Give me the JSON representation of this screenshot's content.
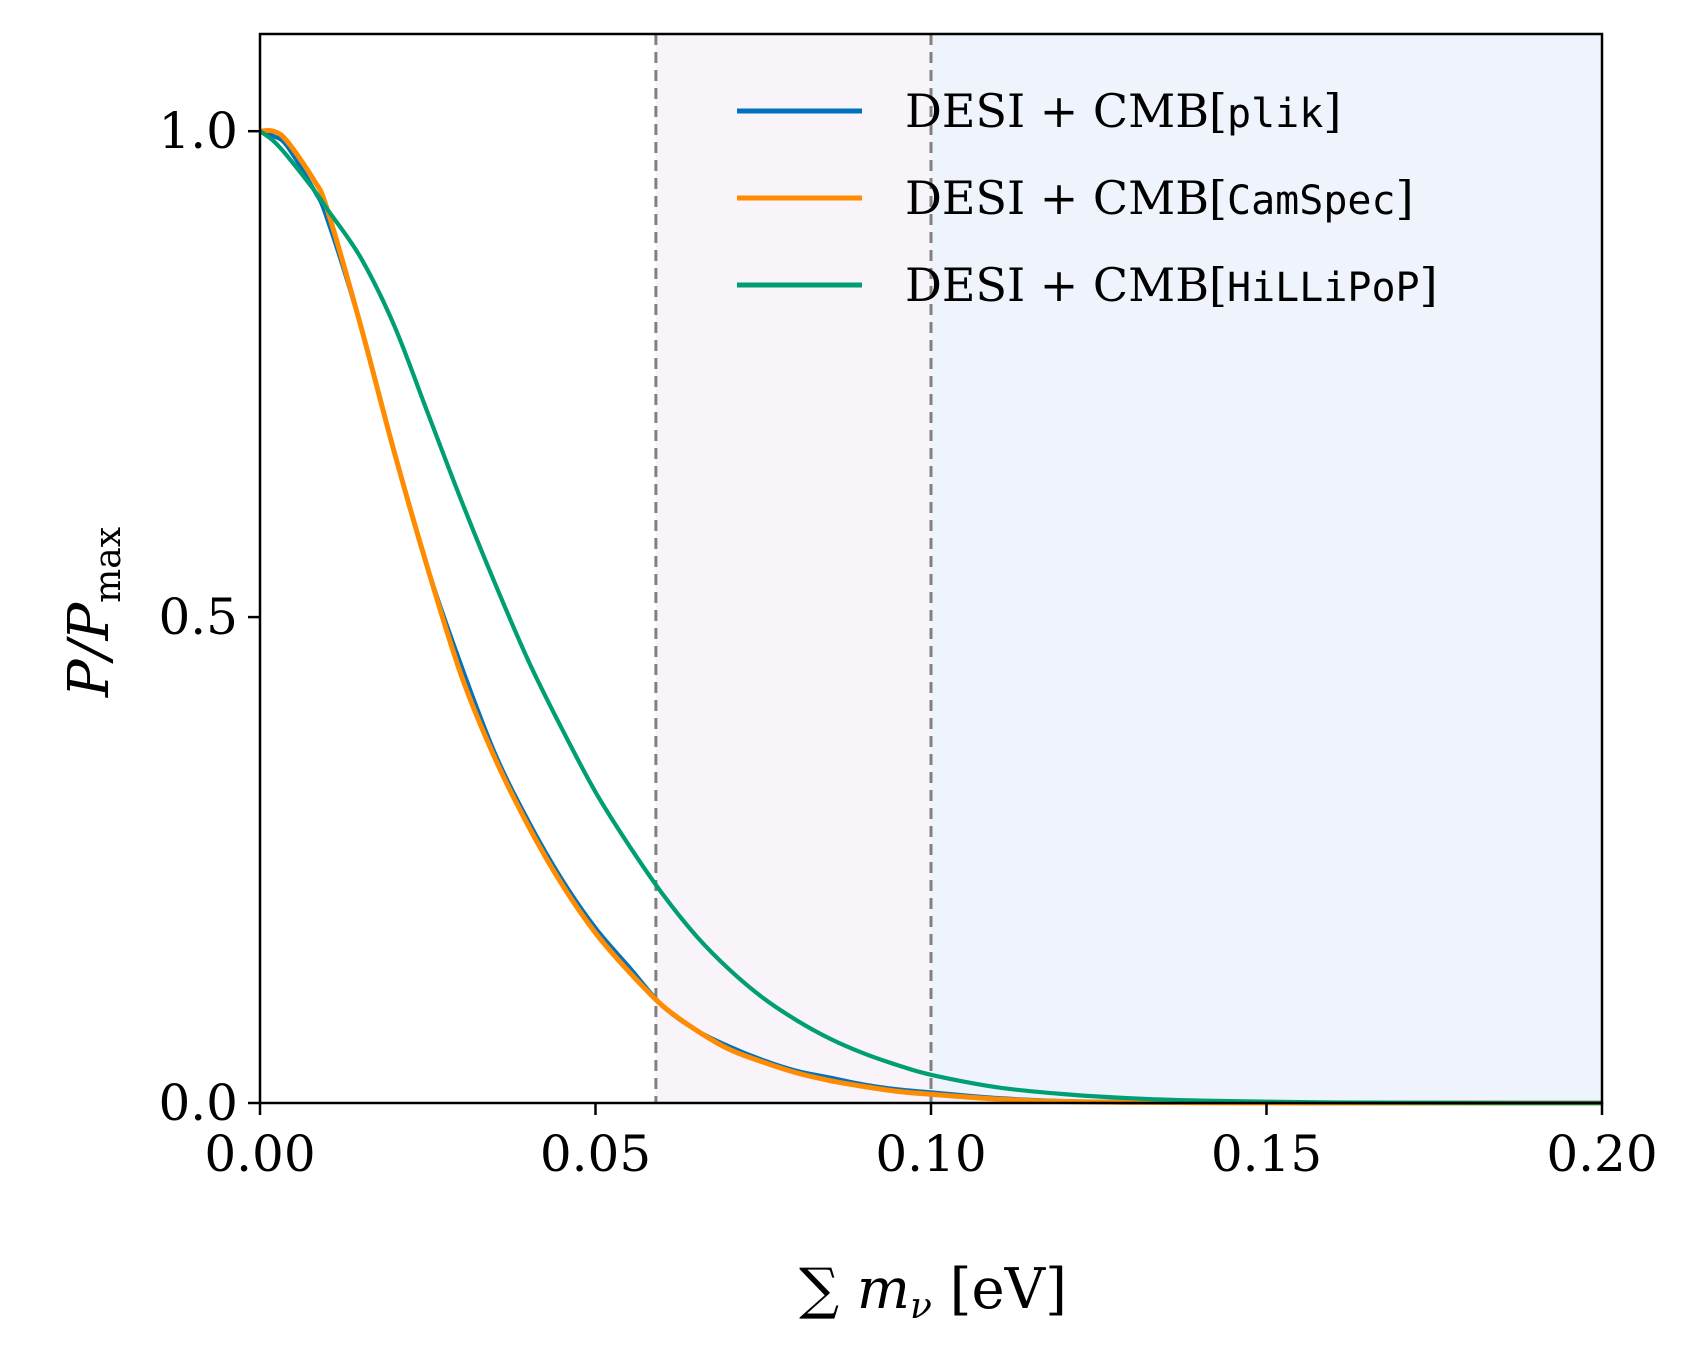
{
  "chart_data": {
    "type": "line",
    "xlabel": {
      "main": "∑ m",
      "sub": "ν",
      "unit": " [eV]"
    },
    "ylabel": {
      "main": "P/P",
      "sub": "max"
    },
    "xlim": [
      0.0,
      0.2
    ],
    "ylim": [
      0.0,
      1.1
    ],
    "xticks": [
      "0.00",
      "0.05",
      "0.10",
      "0.15",
      "0.20"
    ],
    "yticks": [
      "0.0",
      "0.5",
      "1.0"
    ],
    "grid": false,
    "legend_position": "top-right",
    "shaded_regions": [
      {
        "x0": 0.059,
        "x1": 0.1,
        "color": "#f9f3fa"
      },
      {
        "x0": 0.1,
        "x1": 0.2,
        "color": "#eef3fc"
      }
    ],
    "vlines": [
      {
        "x": 0.059,
        "style": "dashed",
        "color": "#808080"
      },
      {
        "x": 0.1,
        "style": "dashed",
        "color": "#808080"
      }
    ],
    "x": [
      0.0,
      0.002,
      0.004,
      0.008,
      0.01,
      0.015,
      0.02,
      0.025,
      0.03,
      0.035,
      0.04,
      0.045,
      0.05,
      0.055,
      0.06,
      0.065,
      0.07,
      0.075,
      0.08,
      0.085,
      0.09,
      0.095,
      0.1,
      0.11,
      0.12,
      0.13,
      0.14,
      0.15,
      0.16,
      0.17,
      0.18,
      0.19,
      0.2
    ],
    "series": [
      {
        "name_prefix": "DESI + CMB[",
        "name_code": "plik",
        "name_suffix": "]",
        "color": "#0072bd",
        "values": [
          1.0,
          0.995,
          0.985,
          0.94,
          0.91,
          0.8,
          0.67,
          0.55,
          0.45,
          0.36,
          0.29,
          0.23,
          0.18,
          0.14,
          0.1,
          0.075,
          0.058,
          0.044,
          0.033,
          0.026,
          0.019,
          0.014,
          0.011,
          0.005,
          0.002,
          0.001,
          0.0005,
          0.0002,
          0.0001,
          0.0,
          0.0,
          0.0,
          0.0
        ]
      },
      {
        "name_prefix": "DESI + CMB[",
        "name_code": "CamSpec",
        "name_suffix": "]",
        "color": "#ff8c00",
        "values": [
          1.0,
          1.0,
          0.99,
          0.95,
          0.92,
          0.8,
          0.67,
          0.55,
          0.44,
          0.355,
          0.285,
          0.225,
          0.175,
          0.135,
          0.1,
          0.075,
          0.055,
          0.042,
          0.031,
          0.023,
          0.017,
          0.012,
          0.009,
          0.004,
          0.0015,
          0.0007,
          0.0003,
          0.0001,
          0.0,
          0.0,
          0.0,
          0.0,
          0.0
        ]
      },
      {
        "name_prefix": "DESI + CMB[",
        "name_code": "HiLLiPoP",
        "name_suffix": "]",
        "color": "#009e73",
        "values": [
          1.0,
          0.99,
          0.975,
          0.94,
          0.92,
          0.87,
          0.8,
          0.71,
          0.62,
          0.535,
          0.455,
          0.385,
          0.32,
          0.265,
          0.215,
          0.172,
          0.137,
          0.108,
          0.085,
          0.066,
          0.051,
          0.039,
          0.029,
          0.016,
          0.009,
          0.0048,
          0.0025,
          0.0013,
          0.0006,
          0.0003,
          0.0001,
          0.0,
          0.0
        ]
      }
    ]
  }
}
